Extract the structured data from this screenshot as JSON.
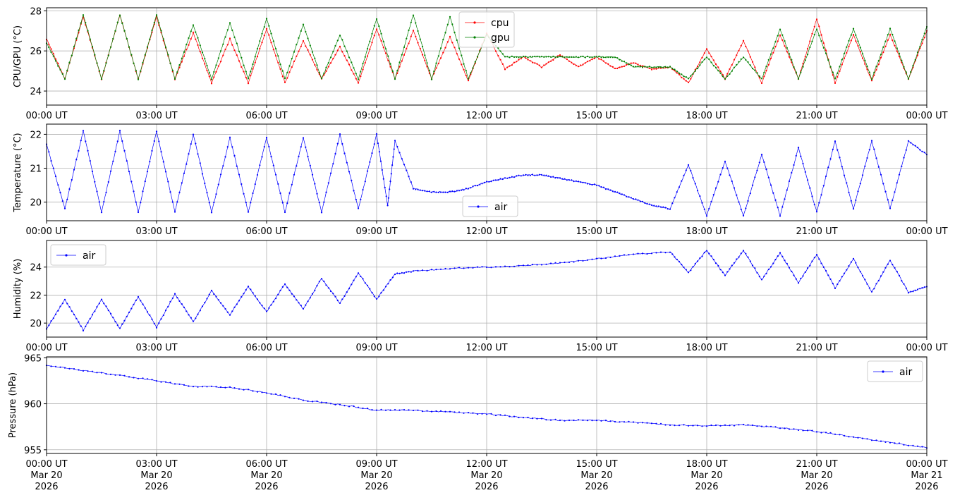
{
  "chart_data": [
    {
      "type": "line",
      "ylabel": "CPU/GPU (°C)",
      "ylim": [
        23.3,
        28.15
      ],
      "yticks": [
        24,
        26,
        28
      ],
      "xlim": [
        "2026-03-20T00:00Z",
        "2026-03-21T00:00Z"
      ],
      "xtick_labels": [
        "00:00 UT",
        "03:00 UT",
        "06:00 UT",
        "09:00 UT",
        "12:00 UT",
        "15:00 UT",
        "18:00 UT",
        "21:00 UT",
        "00:00 UT"
      ],
      "grid": true,
      "legend": "top-center",
      "series": [
        {
          "name": "cpu",
          "color": "#ff0000",
          "x": [
            0,
            0.5,
            1,
            1.5,
            2,
            2.5,
            3,
            3.5,
            4,
            4.5,
            5,
            5.5,
            6,
            6.5,
            7,
            7.5,
            8,
            8.5,
            9,
            9.5,
            10,
            10.5,
            11,
            11.5,
            12,
            12.5,
            13,
            13.5,
            14,
            14.5,
            15,
            15.5,
            16,
            16.5,
            17,
            17.5,
            18,
            18.5,
            19,
            19.5,
            20,
            20.5,
            21,
            21.5,
            22,
            22.5,
            23,
            23.5,
            24
          ],
          "y": [
            26.6,
            24.6,
            27.7,
            24.6,
            27.8,
            24.6,
            27.7,
            24.6,
            26.9,
            24.4,
            26.6,
            24.4,
            27.1,
            24.4,
            26.5,
            24.6,
            26.2,
            24.4,
            27.1,
            24.6,
            27.0,
            24.6,
            26.7,
            24.5,
            26.9,
            25.1,
            25.7,
            25.2,
            25.8,
            25.2,
            25.7,
            25.1,
            25.4,
            25.1,
            25.2,
            24.4,
            26.1,
            24.6,
            26.5,
            24.4,
            26.8,
            24.6,
            27.6,
            24.4,
            26.8,
            24.5,
            26.8,
            24.6,
            27.0
          ]
        },
        {
          "name": "gpu",
          "color": "#008000",
          "x": [
            0,
            0.5,
            1,
            1.5,
            2,
            2.5,
            3,
            3.5,
            4,
            4.5,
            5,
            5.5,
            6,
            6.5,
            7,
            7.5,
            8,
            8.5,
            9,
            9.5,
            10,
            10.5,
            11,
            11.5,
            12,
            12.5,
            13,
            13.5,
            14,
            14.5,
            15,
            15.5,
            16,
            16.5,
            17,
            17.5,
            18,
            18.5,
            19,
            19.5,
            20,
            20.5,
            21,
            21.5,
            22,
            22.5,
            23,
            23.5,
            24
          ],
          "y": [
            26.4,
            24.6,
            27.8,
            24.6,
            27.8,
            24.6,
            27.8,
            24.6,
            27.3,
            24.6,
            27.4,
            24.6,
            27.6,
            24.6,
            27.3,
            24.6,
            26.8,
            24.6,
            27.6,
            24.6,
            27.8,
            24.6,
            27.7,
            24.6,
            26.8,
            25.7,
            25.7,
            25.7,
            25.7,
            25.7,
            25.7,
            25.7,
            25.2,
            25.2,
            25.2,
            24.6,
            25.7,
            24.6,
            25.7,
            24.6,
            27.1,
            24.6,
            27.1,
            24.6,
            27.1,
            24.6,
            27.1,
            24.6,
            27.2
          ]
        }
      ]
    },
    {
      "type": "line",
      "ylabel": "Temperature (°C)",
      "ylim": [
        19.45,
        22.3
      ],
      "yticks": [
        20,
        21,
        22
      ],
      "xlim": [
        "2026-03-20T00:00Z",
        "2026-03-21T00:00Z"
      ],
      "xtick_labels": [
        "00:00 UT",
        "03:00 UT",
        "06:00 UT",
        "09:00 UT",
        "12:00 UT",
        "15:00 UT",
        "18:00 UT",
        "21:00 UT",
        "00:00 UT"
      ],
      "grid": true,
      "legend": "bottom-center",
      "series": [
        {
          "name": "air",
          "color": "#0000ff",
          "x": [
            0,
            0.5,
            1,
            1.5,
            2,
            2.5,
            3,
            3.5,
            4,
            4.5,
            5,
            5.5,
            6,
            6.5,
            7,
            7.5,
            8,
            8.5,
            9,
            9.3,
            9.5,
            10,
            10.5,
            11,
            11.5,
            12,
            12.5,
            13,
            13.5,
            14,
            14.5,
            15,
            15.5,
            16,
            16.5,
            17,
            17.5,
            18,
            18.5,
            19,
            19.5,
            20,
            20.5,
            21,
            21.5,
            22,
            22.5,
            23,
            23.5,
            24
          ],
          "y": [
            21.7,
            19.8,
            22.1,
            19.7,
            22.1,
            19.7,
            22.1,
            19.7,
            22.0,
            19.7,
            21.9,
            19.7,
            21.9,
            19.7,
            21.9,
            19.7,
            22.0,
            19.8,
            22.0,
            19.9,
            21.8,
            20.4,
            20.3,
            20.3,
            20.4,
            20.6,
            20.7,
            20.8,
            20.8,
            20.7,
            20.6,
            20.5,
            20.3,
            20.1,
            19.9,
            19.8,
            21.1,
            19.6,
            21.2,
            19.6,
            21.4,
            19.6,
            21.6,
            19.7,
            21.8,
            19.8,
            21.8,
            19.8,
            21.8,
            21.4
          ]
        }
      ]
    },
    {
      "type": "line",
      "ylabel": "Humidity (%)",
      "ylim": [
        19.0,
        25.9
      ],
      "yticks": [
        20,
        22,
        24
      ],
      "xlim": [
        "2026-03-20T00:00Z",
        "2026-03-21T00:00Z"
      ],
      "xtick_labels": [
        "00:00 UT",
        "03:00 UT",
        "06:00 UT",
        "09:00 UT",
        "12:00 UT",
        "15:00 UT",
        "18:00 UT",
        "21:00 UT",
        "00:00 UT"
      ],
      "grid": true,
      "legend": "top-left",
      "series": [
        {
          "name": "air",
          "color": "#0000ff",
          "x": [
            0,
            0.5,
            1,
            1.5,
            2,
            2.5,
            3,
            3.5,
            4,
            4.5,
            5,
            5.5,
            6,
            6.5,
            7,
            7.5,
            8,
            8.5,
            9,
            9.5,
            10,
            11,
            12,
            13,
            14,
            15,
            16,
            17,
            17.5,
            18,
            18.5,
            19,
            19.5,
            20,
            20.5,
            21,
            21.5,
            22,
            22.5,
            23,
            23.5,
            24
          ],
          "y": [
            19.6,
            21.7,
            19.5,
            21.7,
            19.6,
            21.9,
            19.7,
            22.1,
            20.1,
            22.3,
            20.6,
            22.6,
            20.8,
            22.8,
            21.0,
            23.2,
            21.4,
            23.6,
            21.7,
            23.5,
            23.7,
            23.9,
            24.0,
            24.1,
            24.3,
            24.6,
            24.9,
            25.1,
            23.6,
            25.2,
            23.4,
            25.2,
            23.1,
            25.0,
            22.9,
            24.9,
            22.5,
            24.6,
            22.2,
            24.5,
            22.2,
            22.6
          ]
        }
      ]
    },
    {
      "type": "line",
      "ylabel": "Pressure (hPa)",
      "ylim": [
        954.6,
        965.1
      ],
      "yticks": [
        955,
        960,
        965
      ],
      "xlim": [
        "2026-03-20T00:00Z",
        "2026-03-21T00:00Z"
      ],
      "xtick_labels": [
        [
          "00:00 UT",
          "Mar 20",
          "2026"
        ],
        [
          "03:00 UT",
          "Mar 20",
          "2026"
        ],
        [
          "06:00 UT",
          "Mar 20",
          "2026"
        ],
        [
          "09:00 UT",
          "Mar 20",
          "2026"
        ],
        [
          "12:00 UT",
          "Mar 20",
          "2026"
        ],
        [
          "15:00 UT",
          "Mar 20",
          "2026"
        ],
        [
          "18:00 UT",
          "Mar 20",
          "2026"
        ],
        [
          "21:00 UT",
          "Mar 20",
          "2026"
        ],
        [
          "00:00 UT",
          "Mar 21",
          "2026"
        ]
      ],
      "grid": true,
      "legend": "top-right",
      "series": [
        {
          "name": "air",
          "color": "#0000ff",
          "x": [
            0,
            1,
            2,
            3,
            4,
            5,
            6,
            7,
            8,
            9,
            10,
            11,
            12,
            13,
            14,
            15,
            16,
            17,
            18,
            19,
            20,
            21,
            22,
            23,
            24
          ],
          "y": [
            964.2,
            963.6,
            963.1,
            962.5,
            961.9,
            961.8,
            961.2,
            960.4,
            959.9,
            959.3,
            959.3,
            959.1,
            958.9,
            958.5,
            958.2,
            958.2,
            958.0,
            957.7,
            957.6,
            957.7,
            957.4,
            957.0,
            956.4,
            955.8,
            955.2
          ]
        }
      ]
    }
  ]
}
